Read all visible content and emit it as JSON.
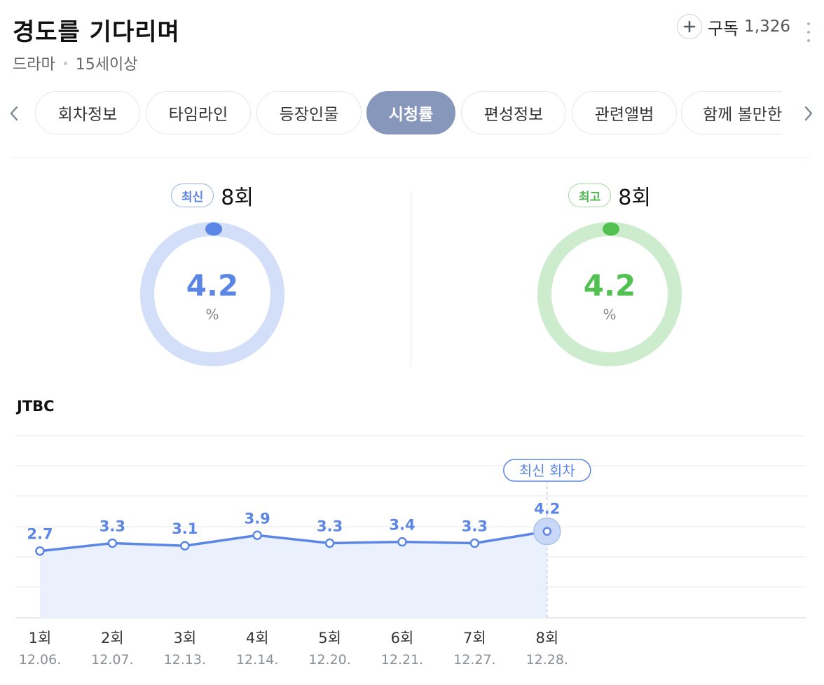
{
  "header": {
    "title": "경도를 기다리며",
    "genre": "드라마",
    "rating": "15세이상",
    "subscribe_label": "구독",
    "subscribe_count": "1,326"
  },
  "tabs": [
    {
      "label": "회차정보",
      "active": false
    },
    {
      "label": "타임라인",
      "active": false
    },
    {
      "label": "등장인물",
      "active": false
    },
    {
      "label": "시청률",
      "active": true
    },
    {
      "label": "편성정보",
      "active": false
    },
    {
      "label": "관련앨범",
      "active": false
    },
    {
      "label": "함께 볼만한",
      "active": false
    }
  ],
  "stats": {
    "latest": {
      "badge": "최신",
      "episode": "8회",
      "value": "4.2",
      "unit": "%",
      "color": "#5b86e5",
      "track_color": "#d3dff8"
    },
    "highest": {
      "badge": "최고",
      "episode": "8회",
      "value": "4.2",
      "unit": "%",
      "color": "#52c152",
      "track_color": "#cdeccd"
    }
  },
  "chart_data": {
    "type": "line",
    "channel": "JTBC",
    "x": [
      "1회",
      "2회",
      "3회",
      "4회",
      "5회",
      "6회",
      "7회",
      "8회"
    ],
    "dates": [
      "12.06.",
      "12.07.",
      "12.13.",
      "12.14.",
      "12.20.",
      "12.21.",
      "12.27.",
      "12.28."
    ],
    "values": [
      2.7,
      3.3,
      3.1,
      3.9,
      3.3,
      3.4,
      3.3,
      4.2
    ],
    "unit": "%",
    "annotation": "최신 회차",
    "line_color": "#5b86e5",
    "fill_color": "#eaf1fd",
    "grid": true
  }
}
